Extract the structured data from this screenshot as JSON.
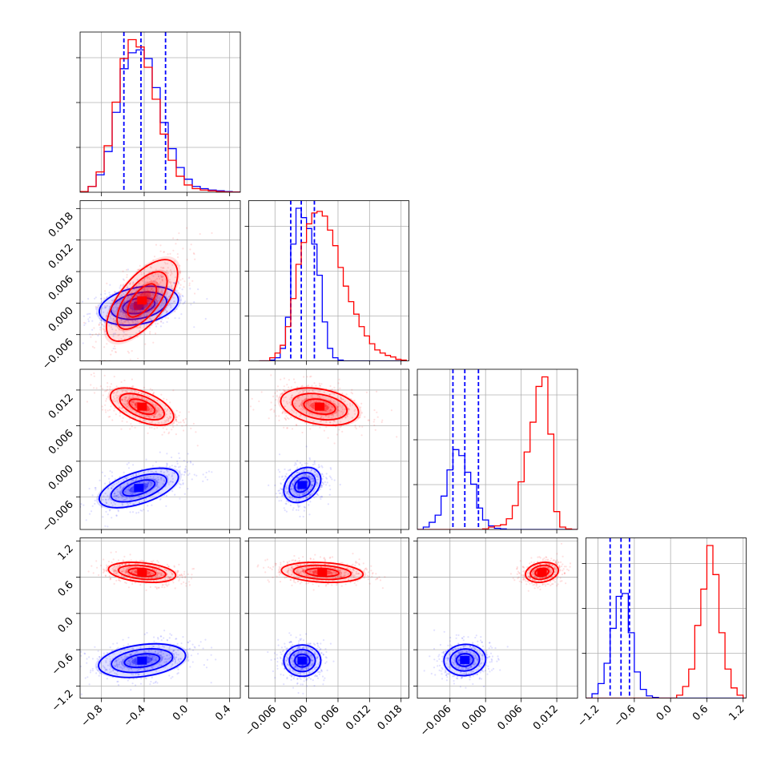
{
  "chart_data": {
    "type": "corner",
    "parameters": 4,
    "grid": true,
    "legend": "none",
    "colors": {
      "blue": "#0000ff",
      "red": "#ff0000"
    },
    "axes": [
      {
        "range": [
          -1.0,
          0.5
        ],
        "ticks": [
          -0.8,
          -0.4,
          0.0,
          0.4
        ],
        "tick_labels": [
          "−0.8",
          "−0.4",
          "0.0",
          "0.4"
        ]
      },
      {
        "range": [
          -0.011,
          0.0195
        ],
        "ticks": [
          -0.006,
          0.0,
          0.006,
          0.012,
          0.018
        ],
        "tick_labels": [
          "−0.006",
          "0.000",
          "0.006",
          "0.012",
          "0.018"
        ]
      },
      {
        "range": [
          -0.0115,
          0.0155
        ],
        "ticks": [
          -0.006,
          0.0,
          0.006,
          0.012
        ],
        "tick_labels": [
          "−0.006",
          "0.000",
          "0.006",
          "0.012"
        ]
      },
      {
        "range": [
          -1.4,
          1.25
        ],
        "ticks": [
          -1.2,
          -0.6,
          0.0,
          0.6,
          1.2
        ],
        "tick_labels": [
          "−1.2",
          "−0.6",
          "0.0",
          "0.6",
          "1.2"
        ]
      }
    ],
    "series": [
      {
        "color": "blue",
        "quantiles": [
          [
            -0.59,
            -0.43,
            -0.2
          ],
          [
            -0.003,
            -0.001,
            0.0015
          ],
          [
            -0.0055,
            -0.0035,
            -0.0012
          ],
          [
            -1.0,
            -0.82,
            -0.68
          ]
        ],
        "hist": [
          {
            "edges": [
              -1.0,
              -0.925,
              -0.85,
              -0.775,
              -0.7,
              -0.625,
              -0.55,
              -0.475,
              -0.4,
              -0.325,
              -0.25,
              -0.175,
              -0.1,
              -0.025,
              0.05,
              0.125,
              0.2,
              0.275,
              0.35,
              0.425,
              0.5
            ],
            "counts": [
              0.5,
              4,
              12,
              28,
              55,
              85,
              96,
              98,
              92,
              72,
              48,
              30,
              17,
              9,
              4,
              2.5,
              1.5,
              1,
              0.5,
              0.2
            ]
          },
          {
            "edges": [
              -0.009,
              -0.008,
              -0.007,
              -0.006,
              -0.005,
              -0.004,
              -0.003,
              -0.002,
              -0.001,
              0.0,
              0.001,
              0.002,
              0.003,
              0.004,
              0.005,
              0.006,
              0.007,
              0.008,
              0.009,
              0.01,
              0.011,
              0.012,
              0.013,
              0.014,
              0.015,
              0.016,
              0.017,
              0.018,
              0.019
            ],
            "counts": [
              0,
              0,
              0.5,
              2,
              8,
              28,
              75,
              98,
              92,
              85,
              75,
              55,
              25,
              8,
              2,
              0.5,
              0,
              0,
              0,
              0,
              0,
              0,
              0,
              0,
              0,
              0,
              0,
              0
            ]
          },
          {
            "edges": [
              -0.0115,
              -0.0105,
              -0.0095,
              -0.0085,
              -0.0075,
              -0.0065,
              -0.0055,
              -0.0045,
              -0.0035,
              -0.0025,
              -0.0015,
              -0.0005,
              0.0005,
              0.0015,
              0.0025,
              0.0035,
              0.0045,
              0.0055,
              0.0065,
              0.0075,
              0.0085,
              0.0095,
              0.0105,
              0.0115,
              0.0125,
              0.0135,
              0.0145,
              0.0155
            ],
            "counts": [
              0,
              2,
              6,
              12,
              28,
              50,
              67,
              62,
              48,
              38,
              18,
              8,
              3,
              1,
              0.5,
              0,
              0,
              0,
              0,
              0,
              0,
              0,
              0,
              0,
              0,
              0,
              0
            ]
          },
          {
            "edges": [
              -1.4,
              -1.3,
              -1.2,
              -1.1,
              -1.0,
              -0.9,
              -0.8,
              -0.7,
              -0.6,
              -0.5,
              -0.4,
              -0.3,
              -0.2,
              -0.1,
              0.0,
              0.1,
              0.2,
              0.3,
              0.4,
              0.5,
              0.6,
              0.7,
              0.8,
              0.9,
              1.0,
              1.1,
              1.2,
              1.25
            ],
            "counts": [
              0,
              3,
              10,
              24,
              48,
              70,
              72,
              45,
              18,
              6,
              1.5,
              0.5,
              0,
              0,
              0,
              0,
              0,
              0,
              0,
              0,
              0,
              0,
              0,
              0,
              0,
              0,
              0
            ]
          }
        ],
        "clusters": [
          [
            null,
            null,
            null,
            null
          ],
          [
            {
              "mean": [
                -0.45,
                -0.0005
              ],
              "sd": [
                0.2,
                0.002
              ],
              "rho": 0.3
            },
            null,
            null,
            null
          ],
          [
            {
              "mean": [
                -0.45,
                -0.0045
              ],
              "sd": [
                0.2,
                0.0018
              ],
              "rho": 0.55
            },
            {
              "mean": [
                -0.0008,
                -0.004
              ],
              "sd": [
                0.0019,
                0.0016
              ],
              "rho": 0.3
            },
            null,
            null
          ],
          [
            {
              "mean": [
                -0.42,
                -0.78
              ],
              "sd": [
                0.22,
                0.15
              ],
              "rho": 0.3
            },
            {
              "mean": [
                -0.0008,
                -0.78
              ],
              "sd": [
                0.0019,
                0.14
              ],
              "rho": 0.0
            },
            {
              "mean": [
                -0.0035,
                -0.77
              ],
              "sd": [
                0.0019,
                0.14
              ],
              "rho": 0.05
            },
            null
          ]
        ]
      },
      {
        "color": "red",
        "quantiles": null,
        "hist": [
          {
            "edges": [
              -1.0,
              -0.925,
              -0.85,
              -0.775,
              -0.7,
              -0.625,
              -0.55,
              -0.475,
              -0.4,
              -0.325,
              -0.25,
              -0.175,
              -0.1,
              -0.025,
              0.05,
              0.125,
              0.2,
              0.275,
              0.35,
              0.425,
              0.5
            ],
            "counts": [
              0.5,
              4,
              14,
              32,
              62,
              92,
              105,
              100,
              86,
              64,
              40,
              22,
              11,
              5,
              2.5,
              1.5,
              1,
              0.5,
              0.2,
              0.1
            ]
          },
          {
            "edges": [
              -0.009,
              -0.008,
              -0.007,
              -0.006,
              -0.005,
              -0.004,
              -0.003,
              -0.002,
              -0.001,
              0.0,
              0.001,
              0.002,
              0.003,
              0.004,
              0.005,
              0.006,
              0.007,
              0.008,
              0.009,
              0.01,
              0.011,
              0.012,
              0.013,
              0.014,
              0.015,
              0.016,
              0.017,
              0.018,
              0.019
            ],
            "counts": [
              0,
              0,
              2,
              5,
              10,
              22,
              40,
              62,
              76,
              88,
              95,
              96,
              93,
              84,
              74,
              60,
              48,
              38,
              30,
              22,
              16,
              11,
              7,
              5,
              3.5,
              2.5,
              1,
              0.5
            ]
          },
          {
            "edges": [
              -0.0115,
              -0.0105,
              -0.0095,
              -0.0085,
              -0.0075,
              -0.0065,
              -0.0055,
              -0.0045,
              -0.0035,
              -0.0025,
              -0.0015,
              -0.0005,
              0.0005,
              0.0015,
              0.0025,
              0.0035,
              0.0045,
              0.0055,
              0.0065,
              0.0075,
              0.0085,
              0.0095,
              0.0105,
              0.0115,
              0.0125,
              0.0135,
              0.0145,
              0.0155
            ],
            "counts": [
              0,
              0,
              0,
              0,
              0,
              0,
              0,
              0,
              0,
              0,
              0,
              0.5,
              2,
              3,
              4,
              9,
              20,
              40,
              65,
              90,
              120,
              128,
              80,
              15,
              2,
              0.5,
              0
            ]
          },
          {
            "edges": [
              -1.4,
              -1.3,
              -1.2,
              -1.1,
              -1.0,
              -0.9,
              -0.8,
              -0.7,
              -0.6,
              -0.5,
              -0.4,
              -0.3,
              -0.2,
              -0.1,
              0.0,
              0.1,
              0.2,
              0.3,
              0.4,
              0.5,
              0.6,
              0.7,
              0.8,
              0.9,
              1.0,
              1.1,
              1.2,
              1.25
            ],
            "counts": [
              0,
              0,
              0,
              0,
              0,
              0,
              0,
              0,
              0,
              0,
              0,
              0,
              0,
              0,
              0,
              2,
              8,
              20,
              50,
              75,
              105,
              85,
              45,
              20,
              7,
              2,
              0
            ]
          }
        ],
        "clusters": [
          [
            null,
            null,
            null,
            null
          ],
          [
            {
              "mean": [
                -0.42,
                0.0005
              ],
              "sd": [
                0.18,
                0.0042
              ],
              "rho": 0.65
            },
            null,
            null,
            null
          ],
          [
            {
              "mean": [
                -0.42,
                0.0092
              ],
              "sd": [
                0.16,
                0.0017
              ],
              "rho": -0.55
            },
            {
              "mean": [
                0.0025,
                0.0092
              ],
              "sd": [
                0.004,
                0.0017
              ],
              "rho": -0.3
            },
            null,
            null
          ],
          [
            {
              "mean": [
                -0.42,
                0.68
              ],
              "sd": [
                0.17,
                0.09
              ],
              "rho": -0.3
            },
            {
              "mean": [
                0.003,
                0.68
              ],
              "sd": [
                0.0042,
                0.09
              ],
              "rho": -0.2
            },
            {
              "mean": [
                0.0095,
                0.68
              ],
              "sd": [
                0.0015,
                0.09
              ],
              "rho": 0.2
            },
            null
          ]
        ]
      }
    ]
  }
}
